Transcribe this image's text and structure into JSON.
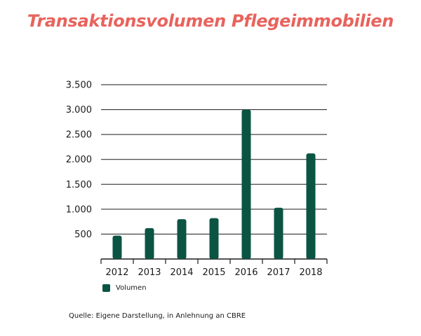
{
  "chart_data": {
    "type": "bar",
    "title": "Transaktionsvolumen Pflegeimmobilien",
    "categories": [
      "2012",
      "2013",
      "2014",
      "2015",
      "2016",
      "2017",
      "2018"
    ],
    "series": [
      {
        "name": "Volumen",
        "values": [
          470,
          620,
          800,
          820,
          3000,
          1030,
          2120
        ]
      }
    ],
    "yticks": [
      "500",
      "1.000",
      "1.500",
      "2.000",
      "2.500",
      "3.000",
      "3.500"
    ],
    "ytick_values": [
      500,
      1000,
      1500,
      2000,
      2500,
      3000,
      3500
    ],
    "ylim": [
      0,
      3500
    ],
    "xlabel": "",
    "ylabel": "",
    "grid": true,
    "legend_position": "bottom-left"
  },
  "colors": {
    "title": "#e8635d",
    "bar": "#0b5443",
    "grid": "#1a1a1a",
    "text": "#1a1a1a"
  },
  "source": "Quelle: Eigene Darstellung, in Anlehnung an CBRE"
}
